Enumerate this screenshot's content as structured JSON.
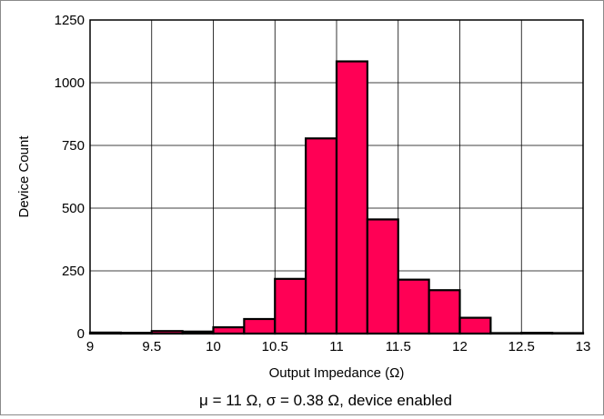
{
  "chart_data": {
    "type": "bar",
    "xlabel": "Output Impedance (Ω)",
    "ylabel": "Device Count",
    "caption": "μ = 11 Ω, σ = 0.38 Ω, device enabled",
    "xlim": [
      9,
      13
    ],
    "ylim": [
      0,
      1250
    ],
    "bin_width": 0.25,
    "bins": [
      {
        "start": 9.0,
        "value": 4
      },
      {
        "start": 9.25,
        "value": 3
      },
      {
        "start": 9.5,
        "value": 10
      },
      {
        "start": 9.75,
        "value": 8
      },
      {
        "start": 10.0,
        "value": 25
      },
      {
        "start": 10.25,
        "value": 58
      },
      {
        "start": 10.5,
        "value": 218
      },
      {
        "start": 10.75,
        "value": 778
      },
      {
        "start": 11.0,
        "value": 1085
      },
      {
        "start": 11.25,
        "value": 455
      },
      {
        "start": 11.5,
        "value": 215
      },
      {
        "start": 11.75,
        "value": 173
      },
      {
        "start": 12.0,
        "value": 63
      },
      {
        "start": 12.25,
        "value": 2
      },
      {
        "start": 12.5,
        "value": 3
      },
      {
        "start": 12.75,
        "value": 2
      }
    ],
    "x_ticks": [
      "9",
      "9.5",
      "10",
      "10.5",
      "11",
      "11.5",
      "12",
      "12.5",
      "13"
    ],
    "y_ticks": [
      "0",
      "250",
      "500",
      "750",
      "1000",
      "1250"
    ],
    "grid": true,
    "bar_color": "#ff0055",
    "bar_edge_color": "#000000"
  }
}
